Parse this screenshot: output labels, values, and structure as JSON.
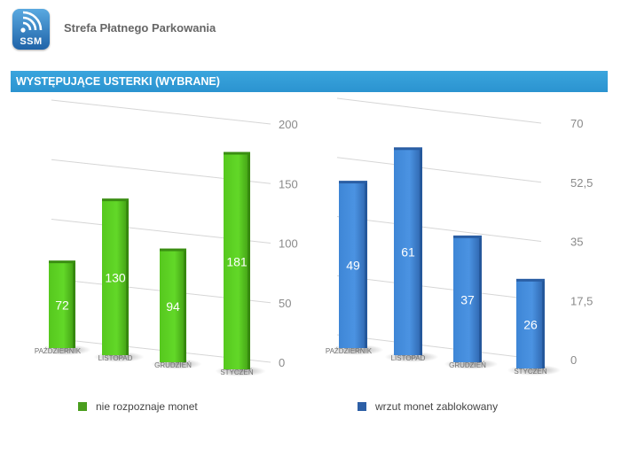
{
  "header": {
    "logo_text": "SSM",
    "app_title": "Strefa Płatnego Parkowania"
  },
  "banner": {
    "title": "WYSTĘPUJĄCE USTERKI (WYBRANE)"
  },
  "colors": {
    "green": "#55c020",
    "blue": "#3a7fd0",
    "banner": "#2e98d4"
  },
  "chart_data": [
    {
      "type": "bar",
      "categories": [
        "PAŹDZIERNIK",
        "LISTOPAD",
        "GRUDZIEŃ",
        "STYCZEŃ"
      ],
      "values": [
        72,
        130,
        94,
        181
      ],
      "series_name": "nie rozpoznaje monet",
      "ylim": [
        0,
        200
      ],
      "yticks": [
        "0",
        "50",
        "100",
        "150",
        "200"
      ],
      "title": "",
      "xlabel": "",
      "ylabel": ""
    },
    {
      "type": "bar",
      "categories": [
        "PAŹDZIERNIK",
        "LISTOPAD",
        "GRUDZIEŃ",
        "STYCZEŃ"
      ],
      "values": [
        49,
        61,
        37,
        26
      ],
      "series_name": "wrzut monet zablokowany",
      "ylim": [
        0,
        70
      ],
      "yticks": [
        "0",
        "17,5",
        "35",
        "52,5",
        "70"
      ],
      "title": "",
      "xlabel": "",
      "ylabel": ""
    }
  ]
}
